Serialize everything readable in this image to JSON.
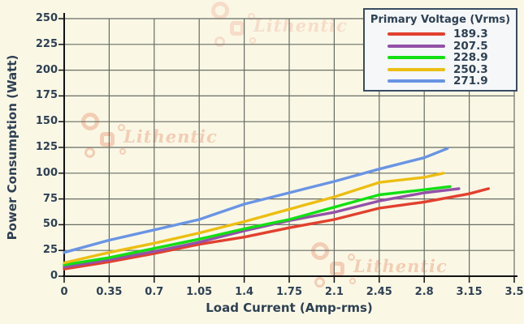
{
  "watermark": {
    "text": "Lithentic"
  },
  "chart_data": {
    "type": "line",
    "title": "",
    "xlabel": "Load Current (Amp-rms)",
    "ylabel": "Power Consumption (Watt)",
    "xlim": [
      0,
      3.5
    ],
    "ylim": [
      0,
      250
    ],
    "x_ticks": [
      "0",
      "0.35",
      "0.7",
      "1.05",
      "1.4",
      "1.75",
      "2.1",
      "2.45",
      "2.8",
      "3.15",
      "3.5"
    ],
    "y_ticks": [
      "0",
      "25",
      "50",
      "75",
      "100",
      "125",
      "150",
      "175",
      "200",
      "225",
      "250"
    ],
    "grid": true,
    "colors": {
      "background": "#faf8e5",
      "gridline": "#686c64",
      "axis": "#121212",
      "text": "#2e4053",
      "legend_border": "#3a4d63",
      "legend_background": "#f5f7f9"
    },
    "legend": {
      "title": "Primary Voltage (Vrms)",
      "position": "top-right"
    },
    "series": [
      {
        "name": "189.3",
        "color": "#e2402e",
        "points": [
          [
            0,
            7
          ],
          [
            0.35,
            14
          ],
          [
            0.7,
            22
          ],
          [
            1.05,
            31
          ],
          [
            1.4,
            38
          ],
          [
            1.75,
            47
          ],
          [
            2.1,
            55
          ],
          [
            2.45,
            66
          ],
          [
            2.8,
            72
          ],
          [
            3.15,
            80
          ],
          [
            3.3,
            85
          ]
        ]
      },
      {
        "name": "207.5",
        "color": "#9351a8",
        "points": [
          [
            0,
            9
          ],
          [
            0.35,
            16
          ],
          [
            0.7,
            24
          ],
          [
            1.05,
            33
          ],
          [
            1.4,
            44
          ],
          [
            1.75,
            54
          ],
          [
            2.1,
            62
          ],
          [
            2.45,
            73
          ],
          [
            2.8,
            81
          ],
          [
            3.07,
            85
          ]
        ]
      },
      {
        "name": "228.9",
        "color": "#12e012",
        "points": [
          [
            0,
            11
          ],
          [
            0.35,
            18
          ],
          [
            0.7,
            27
          ],
          [
            1.05,
            36
          ],
          [
            1.4,
            46
          ],
          [
            1.75,
            55
          ],
          [
            2.1,
            67
          ],
          [
            2.45,
            79
          ],
          [
            2.8,
            84
          ],
          [
            3.0,
            87
          ]
        ]
      },
      {
        "name": "250.3",
        "color": "#ecbe12",
        "points": [
          [
            0,
            13
          ],
          [
            0.35,
            23
          ],
          [
            0.7,
            32
          ],
          [
            1.05,
            42
          ],
          [
            1.4,
            53
          ],
          [
            1.75,
            65
          ],
          [
            2.1,
            77
          ],
          [
            2.45,
            91
          ],
          [
            2.8,
            96
          ],
          [
            2.95,
            100
          ]
        ]
      },
      {
        "name": "271.9",
        "color": "#6a94e4",
        "points": [
          [
            0,
            23
          ],
          [
            0.35,
            35
          ],
          [
            0.7,
            45
          ],
          [
            1.05,
            55
          ],
          [
            1.4,
            70
          ],
          [
            1.75,
            81
          ],
          [
            2.1,
            92
          ],
          [
            2.45,
            104
          ],
          [
            2.8,
            115
          ],
          [
            2.98,
            124
          ]
        ]
      }
    ]
  }
}
